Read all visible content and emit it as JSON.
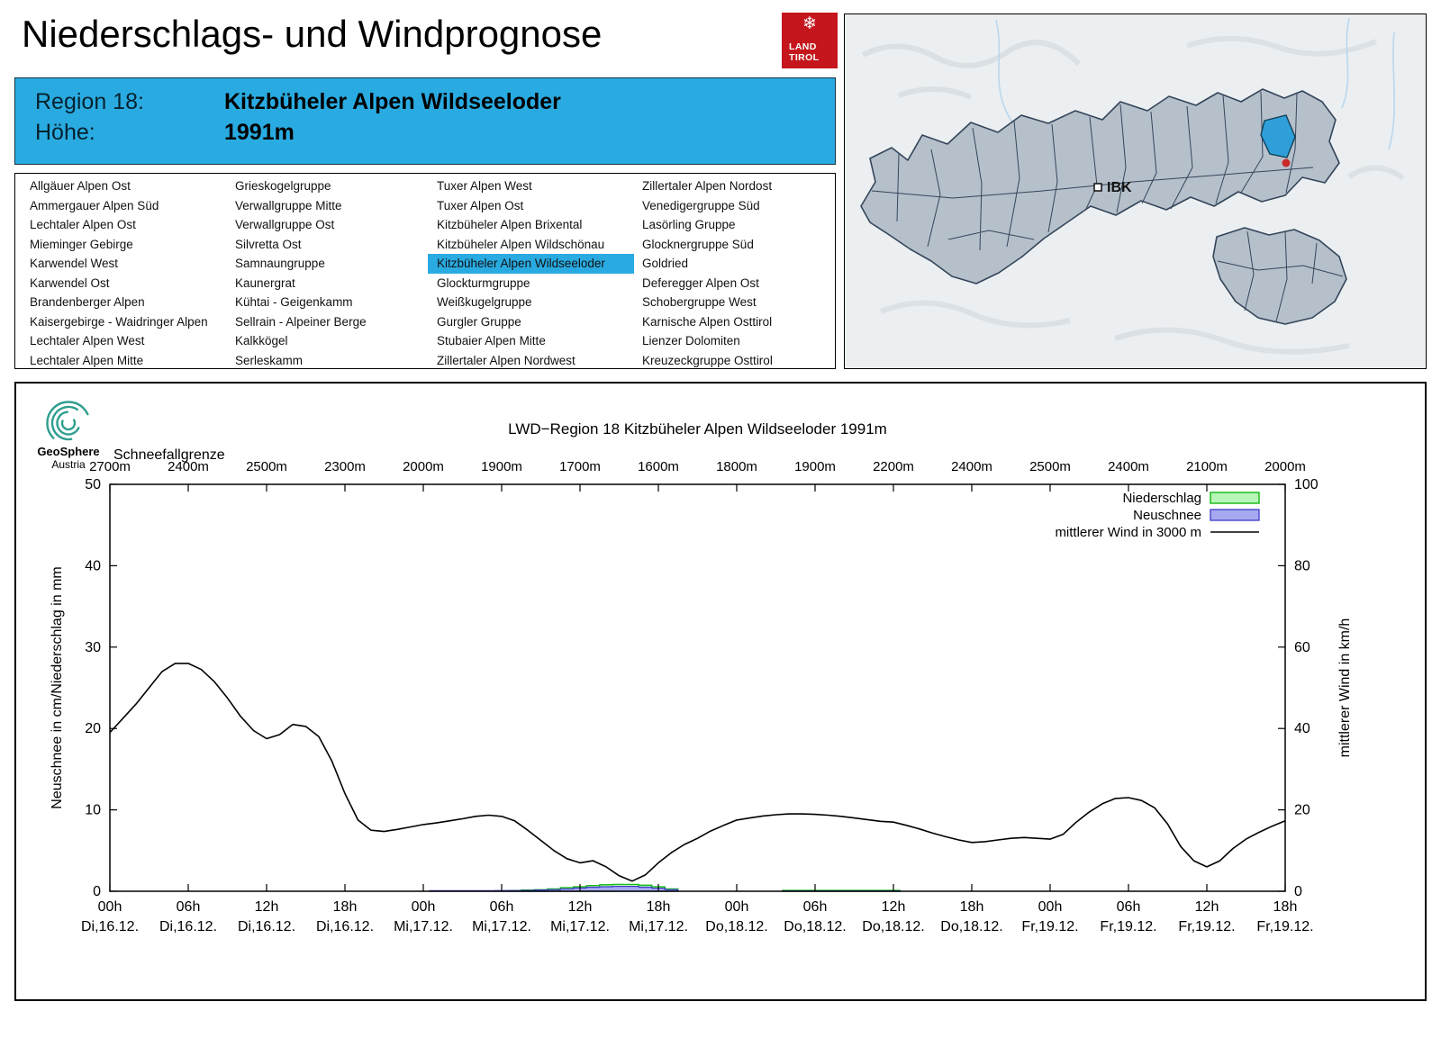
{
  "header": {
    "title": "Niederschlags- und Windprognose",
    "logo": {
      "line1": "LAND",
      "line2": "TIROL",
      "emblem": "❄"
    }
  },
  "region_header": {
    "region_label": "Region 18:",
    "region_name": "Kitzbüheler Alpen Wildseeloder",
    "elevation_label": "Höhe:",
    "elevation_value": "1991m"
  },
  "region_list": {
    "highlight_color": "#29abe2",
    "selected_column": 2,
    "selected_row": 4,
    "columns": [
      [
        "Allgäuer Alpen Ost",
        "Ammergauer Alpen Süd",
        "Lechtaler Alpen Ost",
        "Mieminger Gebirge",
        "Karwendel West",
        "Karwendel Ost",
        "Brandenberger Alpen",
        "Kaisergebirge - Waidringer Alpen",
        "Lechtaler Alpen West",
        "Lechtaler Alpen Mitte"
      ],
      [
        "Grieskogelgruppe",
        "Verwallgruppe Mitte",
        "Verwallgruppe Ost",
        "Silvretta Ost",
        "Samnaungruppe",
        "Kaunergrat",
        "Kühtai - Geigenkamm",
        "Sellrain - Alpeiner Berge",
        "Kalkkögel",
        "Serleskamm"
      ],
      [
        "Tuxer Alpen West",
        "Tuxer Alpen Ost",
        "Kitzbüheler Alpen Brixental",
        "Kitzbüheler Alpen Wildschönau",
        "Kitzbüheler Alpen Wildseeloder",
        "Glockturmgruppe",
        "Weißkugelgruppe",
        "Gurgler Gruppe",
        "Stubaier Alpen Mitte",
        "Zillertaler Alpen Nordwest"
      ],
      [
        "Zillertaler Alpen Nordost",
        "Venedigergruppe Süd",
        "Lasörling Gruppe",
        "Glocknergruppe Süd",
        "Goldried",
        "Deferegger Alpen Ost",
        "Schobergruppe West",
        "Karnische Alpen Osttirol",
        "Lienzer Dolomiten",
        "Kreuzeckgruppe Osttirol"
      ]
    ]
  },
  "map": {
    "city_label": "IBK",
    "highlight_color": "#2e9fd8"
  },
  "branding": {
    "geosphere": "GeoSphere",
    "austria": "Austria"
  },
  "chart_data": {
    "type": "line+bar",
    "title": "LWD−Region 18 Kitzbüheler Alpen Wildseeloder 1991m",
    "snowline": {
      "label": "Schneefallgrenze",
      "values": [
        "2700m",
        "2400m",
        "2500m",
        "2300m",
        "2000m",
        "1900m",
        "1700m",
        "1600m",
        "1800m",
        "1900m",
        "2200m",
        "2400m",
        "2500m",
        "2400m",
        "2100m",
        "2000m"
      ]
    },
    "axes": {
      "ylabel_left": "Neuschnee in cm/Niederschlag in mm",
      "ylabel_right": "mittlerer Wind in km/h",
      "ylim_left": [
        0,
        50
      ],
      "ylim_right": [
        0,
        100
      ],
      "yticks_left": [
        0,
        10,
        20,
        30,
        40,
        50
      ],
      "yticks_right": [
        0,
        20,
        40,
        60,
        80,
        100
      ],
      "x_hours_range": [
        0,
        90
      ],
      "grid": false,
      "legend_position": "top-right"
    },
    "xticks": [
      {
        "t": 0,
        "time": "00h",
        "date": "Di,16.12."
      },
      {
        "t": 6,
        "time": "06h",
        "date": "Di,16.12."
      },
      {
        "t": 12,
        "time": "12h",
        "date": "Di,16.12."
      },
      {
        "t": 18,
        "time": "18h",
        "date": "Di,16.12."
      },
      {
        "t": 24,
        "time": "00h",
        "date": "Mi,17.12."
      },
      {
        "t": 30,
        "time": "06h",
        "date": "Mi,17.12."
      },
      {
        "t": 36,
        "time": "12h",
        "date": "Mi,17.12."
      },
      {
        "t": 42,
        "time": "18h",
        "date": "Mi,17.12."
      },
      {
        "t": 48,
        "time": "00h",
        "date": "Do,18.12."
      },
      {
        "t": 54,
        "time": "06h",
        "date": "Do,18.12."
      },
      {
        "t": 60,
        "time": "12h",
        "date": "Do,18.12."
      },
      {
        "t": 66,
        "time": "18h",
        "date": "Do,18.12."
      },
      {
        "t": 72,
        "time": "00h",
        "date": "Fr,19.12."
      },
      {
        "t": 78,
        "time": "06h",
        "date": "Fr,19.12."
      },
      {
        "t": 84,
        "time": "12h",
        "date": "Fr,19.12."
      },
      {
        "t": 90,
        "time": "18h",
        "date": "Fr,19.12."
      }
    ],
    "legend": [
      {
        "label": "Niederschlag",
        "swatch": "box",
        "fill": "#b8f5b8",
        "stroke": "#00b400"
      },
      {
        "label": "Neuschnee",
        "swatch": "box",
        "fill": "#a8a8f0",
        "stroke": "#3c3cc8"
      },
      {
        "label": "mittlerer Wind in 3000 m",
        "swatch": "line",
        "stroke": "#000000"
      }
    ],
    "series": [
      {
        "name": "Niederschlag",
        "type": "bars",
        "axis": "left",
        "unit": "mm",
        "points": [
          [
            31,
            0.1
          ],
          [
            32,
            0.15
          ],
          [
            33,
            0.2
          ],
          [
            34,
            0.3
          ],
          [
            35,
            0.45
          ],
          [
            36,
            0.55
          ],
          [
            37,
            0.7
          ],
          [
            38,
            0.8
          ],
          [
            39,
            0.85
          ],
          [
            40,
            0.85
          ],
          [
            41,
            0.75
          ],
          [
            42,
            0.55
          ],
          [
            43,
            0.3
          ],
          [
            52,
            0.12
          ],
          [
            53,
            0.12
          ],
          [
            54,
            0.12
          ],
          [
            55,
            0.12
          ],
          [
            56,
            0.12
          ],
          [
            57,
            0.12
          ],
          [
            58,
            0.12
          ],
          [
            59,
            0.12
          ],
          [
            60,
            0.12
          ]
        ]
      },
      {
        "name": "Neuschnee",
        "type": "bars",
        "axis": "left",
        "unit": "cm",
        "points": [
          [
            25,
            0.07
          ],
          [
            26,
            0.07
          ],
          [
            27,
            0.07
          ],
          [
            28,
            0.07
          ],
          [
            29,
            0.07
          ],
          [
            30,
            0.08
          ],
          [
            31,
            0.08
          ],
          [
            32,
            0.1
          ],
          [
            33,
            0.15
          ],
          [
            34,
            0.2
          ],
          [
            35,
            0.3
          ],
          [
            36,
            0.4
          ],
          [
            37,
            0.5
          ],
          [
            38,
            0.55
          ],
          [
            39,
            0.6
          ],
          [
            40,
            0.6
          ],
          [
            41,
            0.5
          ],
          [
            42,
            0.38
          ],
          [
            43,
            0.2
          ],
          [
            52,
            0.05
          ],
          [
            53,
            0.05
          ],
          [
            54,
            0.05
          ],
          [
            55,
            0.05
          ],
          [
            56,
            0.05
          ],
          [
            57,
            0.05
          ],
          [
            58,
            0.05
          ],
          [
            59,
            0.05
          ],
          [
            60,
            0.05
          ]
        ]
      },
      {
        "name": "mittlerer Wind in 3000 m",
        "type": "line",
        "axis": "right",
        "unit": "km/h",
        "points": [
          [
            0,
            39
          ],
          [
            1,
            42.5
          ],
          [
            2,
            46
          ],
          [
            3,
            50
          ],
          [
            4,
            54
          ],
          [
            5,
            56
          ],
          [
            6,
            56
          ],
          [
            7,
            54.5
          ],
          [
            8,
            51.5
          ],
          [
            9,
            47.5
          ],
          [
            10,
            43
          ],
          [
            11,
            39.5
          ],
          [
            12,
            37.5
          ],
          [
            13,
            38.5
          ],
          [
            14,
            41
          ],
          [
            15,
            40.5
          ],
          [
            16,
            38
          ],
          [
            17,
            32
          ],
          [
            18,
            24
          ],
          [
            19,
            17.5
          ],
          [
            20,
            15
          ],
          [
            21,
            14.7
          ],
          [
            22,
            15.2
          ],
          [
            23,
            15.8
          ],
          [
            24,
            16.4
          ],
          [
            25,
            16.8
          ],
          [
            26,
            17.3
          ],
          [
            27,
            17.8
          ],
          [
            28,
            18.4
          ],
          [
            29,
            18.7
          ],
          [
            30,
            18.4
          ],
          [
            31,
            17.3
          ],
          [
            32,
            15
          ],
          [
            33,
            12.5
          ],
          [
            34,
            10
          ],
          [
            35,
            8
          ],
          [
            36,
            7
          ],
          [
            37,
            7.5
          ],
          [
            38,
            6
          ],
          [
            39,
            3.8
          ],
          [
            40,
            2.5
          ],
          [
            41,
            4
          ],
          [
            42,
            7
          ],
          [
            43,
            9.5
          ],
          [
            44,
            11.5
          ],
          [
            45,
            13
          ],
          [
            46,
            14.8
          ],
          [
            47,
            16.2
          ],
          [
            48,
            17.5
          ],
          [
            49,
            18
          ],
          [
            50,
            18.5
          ],
          [
            51,
            18.8
          ],
          [
            52,
            19
          ],
          [
            53,
            19
          ],
          [
            54,
            18.9
          ],
          [
            55,
            18.7
          ],
          [
            56,
            18.4
          ],
          [
            57,
            18
          ],
          [
            58,
            17.6
          ],
          [
            59,
            17.2
          ],
          [
            60,
            17
          ],
          [
            61,
            16.2
          ],
          [
            62,
            15.3
          ],
          [
            63,
            14.3
          ],
          [
            64,
            13.4
          ],
          [
            65,
            12.6
          ],
          [
            66,
            12
          ],
          [
            67,
            12.2
          ],
          [
            68,
            12.6
          ],
          [
            69,
            13
          ],
          [
            70,
            13.2
          ],
          [
            71,
            13
          ],
          [
            72,
            12.8
          ],
          [
            73,
            14
          ],
          [
            74,
            17
          ],
          [
            75,
            19.5
          ],
          [
            76,
            21.5
          ],
          [
            77,
            22.8
          ],
          [
            78,
            23
          ],
          [
            79,
            22.3
          ],
          [
            80,
            20.5
          ],
          [
            81,
            16.5
          ],
          [
            82,
            11
          ],
          [
            83,
            7.5
          ],
          [
            84,
            6
          ],
          [
            85,
            7.5
          ],
          [
            86,
            10.5
          ],
          [
            87,
            12.8
          ],
          [
            88,
            14.5
          ],
          [
            89,
            16
          ],
          [
            90,
            17.3
          ]
        ]
      }
    ]
  }
}
